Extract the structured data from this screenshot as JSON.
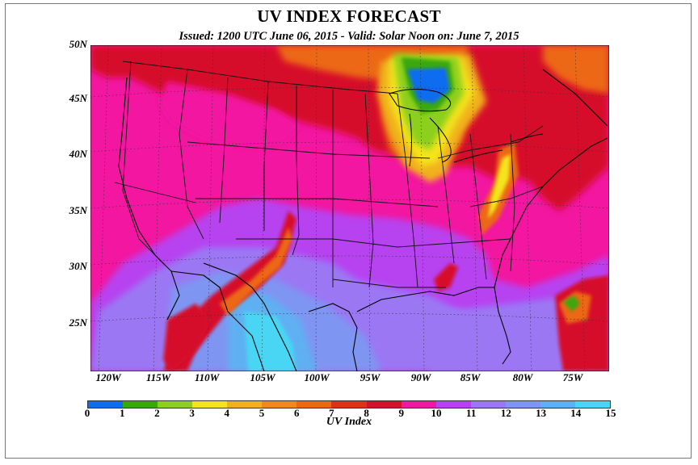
{
  "title": "UV INDEX FORECAST",
  "subtitle": "Issued: 1200 UTC June 06, 2015  -  Valid: Solar Noon on: June  7, 2015",
  "lat_labels": [
    "50N",
    "45N",
    "40N",
    "35N",
    "30N",
    "25N"
  ],
  "lon_labels": [
    "120W",
    "115W",
    "110W",
    "105W",
    "100W",
    "95W",
    "90W",
    "85W",
    "80W",
    "75W"
  ],
  "colorbar": {
    "title": "UV Index",
    "ticks": [
      "0",
      "1",
      "2",
      "3",
      "4",
      "5",
      "6",
      "7",
      "8",
      "9",
      "10",
      "11",
      "12",
      "13",
      "14",
      "15"
    ],
    "colors": [
      "#0f6cf0",
      "#3aa80c",
      "#8ccf1e",
      "#f4e41a",
      "#f0b21a",
      "#ef8a1a",
      "#ec6714",
      "#e0301c",
      "#d6102a",
      "#f216a0",
      "#b743f0",
      "#9b77f4",
      "#7f95f2",
      "#5fb0f2",
      "#49d6f4"
    ]
  },
  "map_colors": {
    "pink": "#f216a0",
    "red": "#d6102a",
    "purple": "#b743f0",
    "lilac": "#9b77f4",
    "periwinkle": "#7f95f2",
    "sky": "#5fb0f2",
    "cyan": "#49d6f4",
    "orange": "#ec6714",
    "amber": "#f0b21a",
    "yellow": "#f4e41a",
    "lime": "#8ccf1e",
    "green": "#3aa80c",
    "blue": "#0f6cf0"
  }
}
